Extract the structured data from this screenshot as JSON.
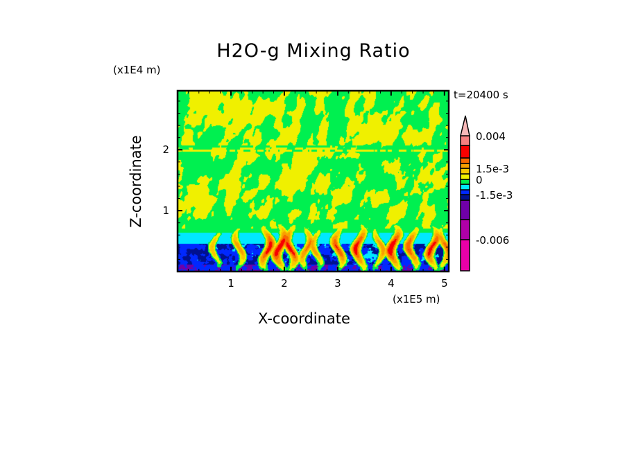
{
  "chart_data": {
    "type": "heatmap",
    "title": "H2O-g Mixing Ratio",
    "xlabel": "X-coordinate",
    "ylabel": "Z-coordinate",
    "x_scale_label": "(x1E5 m)",
    "z_scale_label": "(x1E4 m)",
    "time_label": "t=20400 s",
    "xlim": [
      0,
      5.08
    ],
    "ylim": [
      0,
      2.97
    ],
    "x_ticks": [
      "1",
      "2",
      "3",
      "4",
      "5"
    ],
    "y_ticks": [
      "1",
      "2"
    ],
    "colorbar": {
      "labels": [
        {
          "text": "0.004",
          "level": 12
        },
        {
          "text": "1.5e-3",
          "level": 9
        },
        {
          "text": "0",
          "level": 7
        },
        {
          "text": "-1.5e-3",
          "level": 4
        },
        {
          "text": "-0.006",
          "level": 1
        }
      ],
      "colors": [
        "#e800a8",
        "#b000a8",
        "#7000a8",
        "#001090",
        "#0028ff",
        "#00e8ff",
        "#00f050",
        "#f0f000",
        "#f8c800",
        "#f8a000",
        "#f86800",
        "#f80000",
        "#f88080",
        "#f8b8b8"
      ]
    }
  }
}
